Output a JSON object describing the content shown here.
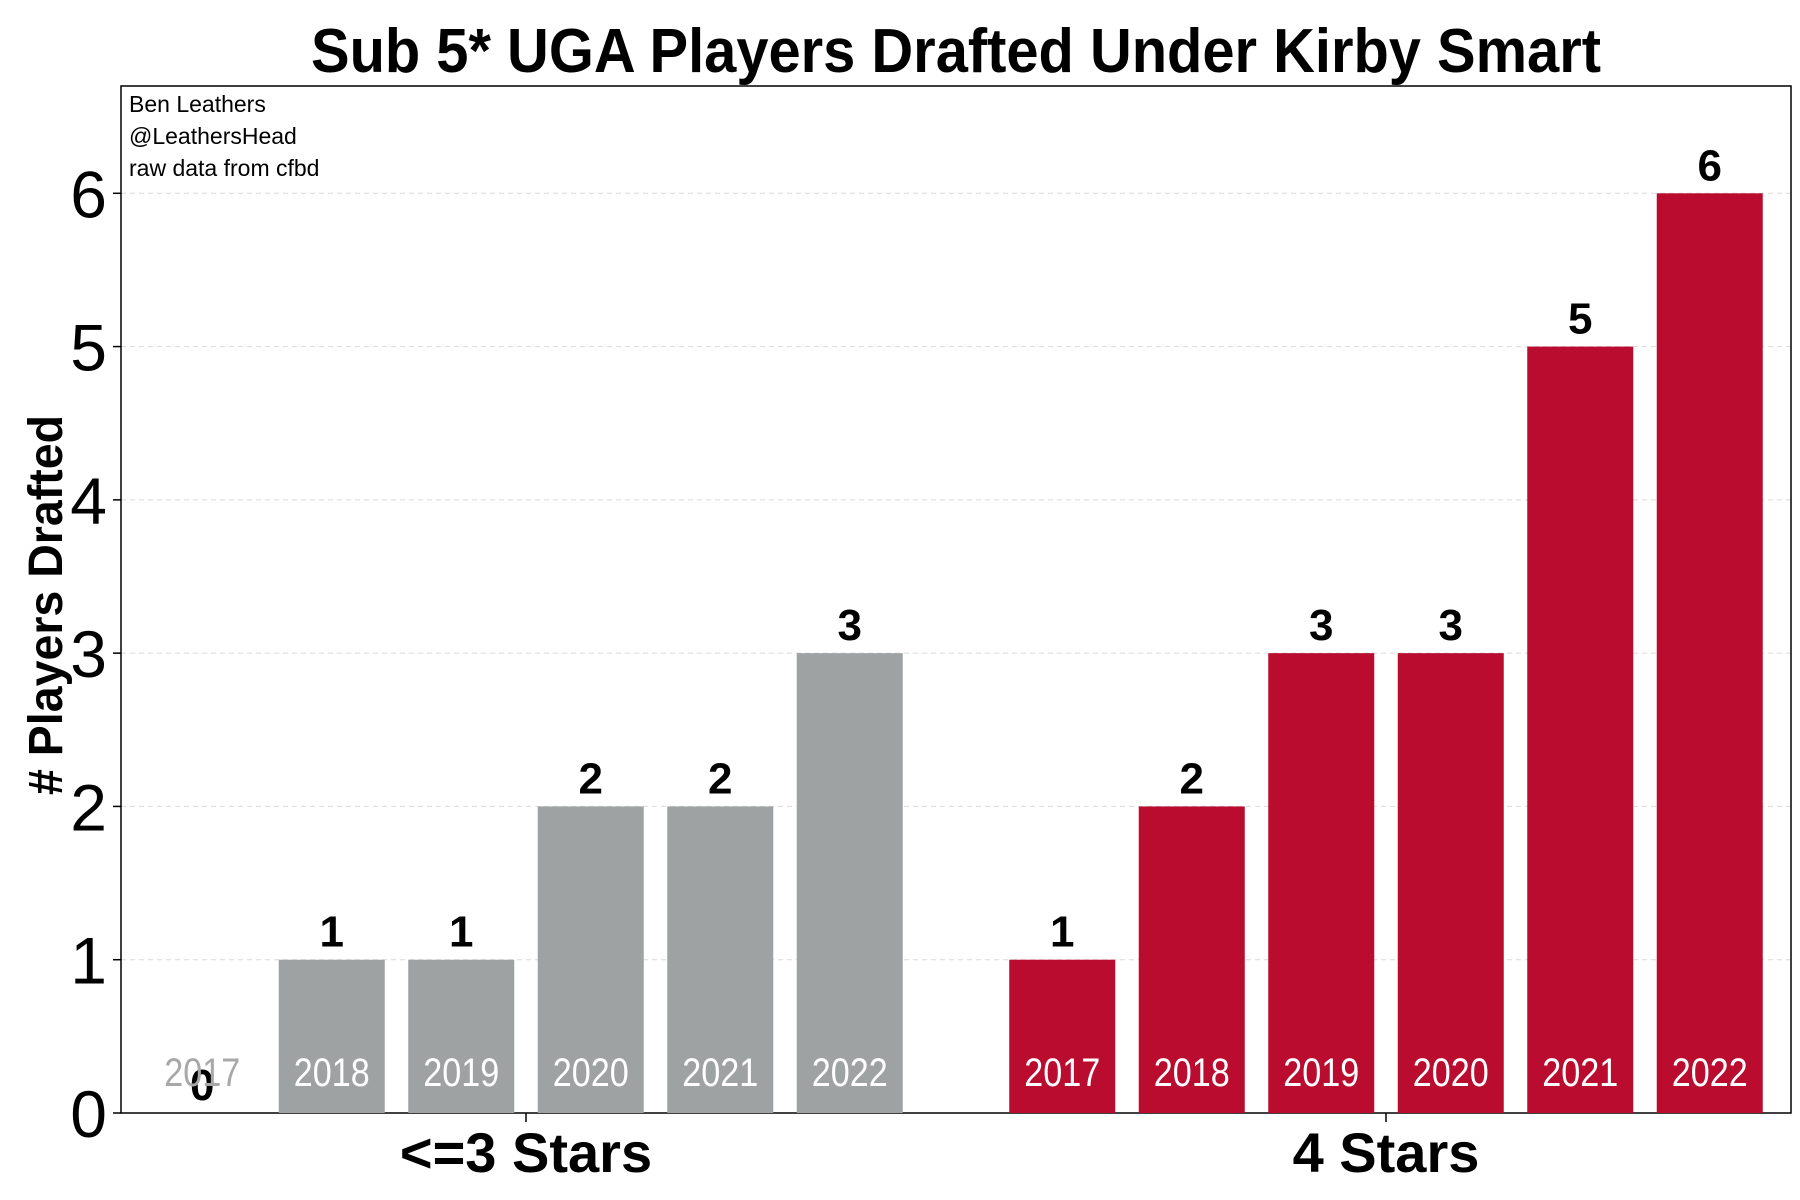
{
  "chart_data": {
    "type": "bar",
    "title": "Sub 5* UGA Players Drafted Under Kirby Smart",
    "ylabel": "# Players Drafted",
    "xlabel": "",
    "ylim": [
      0,
      6.7
    ],
    "yticks": [
      "0",
      "1",
      "2",
      "3",
      "4",
      "5",
      "6"
    ],
    "grid": "horizontal-dashed",
    "annotation_lines": [
      "Ben Leathers",
      "@LeathersHead",
      "raw data from cfbd"
    ],
    "groups": [
      {
        "name": "<=3 Stars",
        "color": "#9EA2A2",
        "categories": [
          "2017",
          "2018",
          "2019",
          "2020",
          "2021",
          "2022"
        ],
        "values": [
          0,
          1,
          1,
          2,
          2,
          3
        ],
        "value_labels": [
          "0",
          "1",
          "1",
          "2",
          "2",
          "3"
        ]
      },
      {
        "name": "4 Stars",
        "color": "#BA0C2F",
        "categories": [
          "2017",
          "2018",
          "2019",
          "2020",
          "2021",
          "2022"
        ],
        "values": [
          1,
          2,
          3,
          3,
          5,
          6
        ],
        "value_labels": [
          "1",
          "2",
          "3",
          "3",
          "5",
          "6"
        ]
      }
    ]
  }
}
